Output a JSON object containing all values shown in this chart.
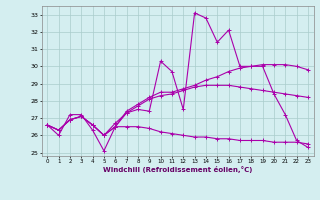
{
  "xlabel": "Windchill (Refroidissement éolien,°C)",
  "ylabel": "",
  "xlim": [
    -0.5,
    23.5
  ],
  "ylim": [
    24.8,
    33.5
  ],
  "yticks": [
    25,
    26,
    27,
    28,
    29,
    30,
    31,
    32,
    33
  ],
  "xticks": [
    0,
    1,
    2,
    3,
    4,
    5,
    6,
    7,
    8,
    9,
    10,
    11,
    12,
    13,
    14,
    15,
    16,
    17,
    18,
    19,
    20,
    21,
    22,
    23
  ],
  "bg_color": "#d4eef0",
  "grid_color": "#aacccc",
  "line_color": "#aa00aa",
  "lines": [
    [
      26.6,
      26.0,
      27.2,
      27.2,
      26.3,
      25.1,
      26.5,
      27.3,
      27.5,
      27.4,
      30.3,
      29.7,
      27.5,
      33.1,
      32.8,
      31.4,
      32.1,
      30.0,
      30.0,
      30.0,
      28.4,
      27.2,
      25.7,
      25.3
    ],
    [
      26.6,
      26.3,
      26.9,
      27.1,
      26.6,
      26.0,
      26.5,
      27.4,
      27.8,
      28.2,
      28.5,
      28.5,
      28.7,
      28.9,
      29.2,
      29.4,
      29.7,
      29.9,
      30.0,
      30.1,
      30.1,
      30.1,
      30.0,
      29.8
    ],
    [
      26.6,
      26.3,
      26.9,
      27.1,
      26.6,
      26.0,
      26.7,
      27.3,
      27.7,
      28.1,
      28.3,
      28.4,
      28.6,
      28.8,
      28.9,
      28.9,
      28.9,
      28.8,
      28.7,
      28.6,
      28.5,
      28.4,
      28.3,
      28.2
    ],
    [
      26.6,
      26.3,
      26.9,
      27.1,
      26.6,
      26.0,
      26.5,
      26.5,
      26.5,
      26.4,
      26.2,
      26.1,
      26.0,
      25.9,
      25.9,
      25.8,
      25.8,
      25.7,
      25.7,
      25.7,
      25.6,
      25.6,
      25.6,
      25.5
    ]
  ]
}
